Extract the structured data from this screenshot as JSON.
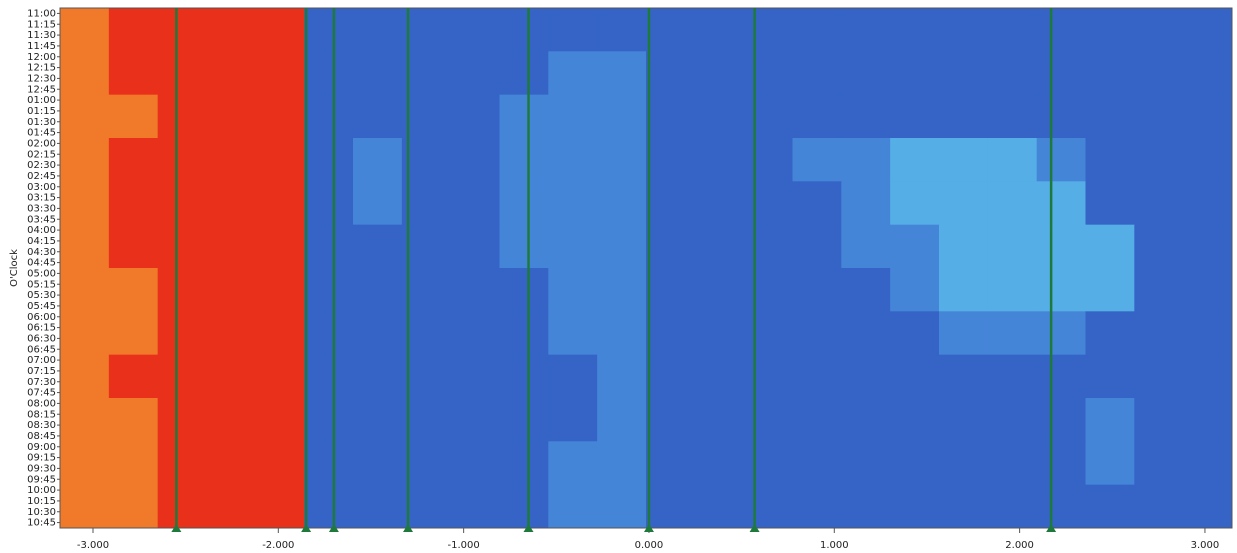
{
  "chart_data": {
    "type": "heatmap",
    "y_label": "O'Clock",
    "categories": [
      "11:00",
      "11:15",
      "11:30",
      "11:45",
      "12:00",
      "12:15",
      "12:30",
      "12:45",
      "01:00",
      "01:15",
      "01:30",
      "01:45",
      "02:00",
      "02:15",
      "02:30",
      "02:45",
      "03:00",
      "03:15",
      "03:30",
      "03:45",
      "04:00",
      "04:15",
      "04:30",
      "04:45",
      "05:00",
      "05:15",
      "05:30",
      "05:45",
      "06:00",
      "06:15",
      "06:30",
      "06:45",
      "07:00",
      "07:15",
      "07:30",
      "07:45",
      "08:00",
      "08:15",
      "08:30",
      "08:45",
      "09:00",
      "09:15",
      "09:30",
      "09:45",
      "10:00",
      "10:15",
      "10:30",
      "10:45"
    ],
    "xlim": [
      -3.178,
      3.146
    ],
    "xticks": [
      {
        "value": -3,
        "label": "-3.000"
      },
      {
        "value": -2,
        "label": "-2.000"
      },
      {
        "value": -1,
        "label": "-1.000"
      },
      {
        "value": 0,
        "label": "0.000"
      },
      {
        "value": 1,
        "label": "1.000"
      },
      {
        "value": 2,
        "label": "2.000"
      },
      {
        "value": 3,
        "label": "3.000"
      }
    ],
    "colorscale": [
      "#2b4fae",
      "#3564c6",
      "#4585d8",
      "#55aee6",
      "#e8301a",
      "#f07a2a"
    ],
    "markers": [
      -2.55,
      -1.85,
      -1.7,
      -1.3,
      -0.65,
      0,
      0.57,
      2.17
    ],
    "marker_color": "#1e7a3a",
    "z": [
      [
        5,
        4,
        4,
        4,
        4,
        1,
        1,
        1,
        1,
        1,
        1,
        1,
        1,
        1,
        1,
        1,
        1,
        1,
        1,
        1,
        1,
        1,
        1,
        1
      ],
      [
        5,
        4,
        4,
        4,
        4,
        1,
        1,
        1,
        1,
        1,
        2,
        2,
        1,
        1,
        1,
        1,
        1,
        1,
        1,
        1,
        1,
        1,
        1,
        1
      ],
      [
        5,
        5,
        4,
        4,
        4,
        1,
        1,
        1,
        1,
        2,
        2,
        2,
        1,
        1,
        1,
        1,
        1,
        1,
        1,
        1,
        1,
        1,
        1,
        1
      ],
      [
        5,
        4,
        4,
        4,
        4,
        1,
        2,
        1,
        1,
        2,
        2,
        2,
        1,
        1,
        1,
        2,
        2,
        3,
        3,
        3,
        2,
        1,
        1,
        1
      ],
      [
        5,
        4,
        4,
        4,
        4,
        1,
        2,
        1,
        1,
        2,
        2,
        2,
        1,
        1,
        1,
        1,
        2,
        3,
        3,
        3,
        3,
        1,
        1,
        1
      ],
      [
        5,
        4,
        4,
        4,
        4,
        1,
        1,
        1,
        1,
        2,
        2,
        2,
        1,
        1,
        1,
        1,
        2,
        2,
        3,
        3,
        3,
        3,
        1,
        1
      ],
      [
        5,
        5,
        4,
        4,
        4,
        1,
        1,
        1,
        1,
        1,
        2,
        2,
        1,
        1,
        1,
        1,
        1,
        2,
        3,
        3,
        3,
        3,
        1,
        1
      ],
      [
        5,
        5,
        4,
        4,
        4,
        1,
        1,
        1,
        1,
        1,
        2,
        2,
        1,
        1,
        1,
        1,
        1,
        1,
        2,
        2,
        2,
        1,
        1,
        1
      ],
      [
        5,
        4,
        4,
        4,
        4,
        1,
        1,
        1,
        1,
        1,
        1,
        2,
        1,
        1,
        1,
        1,
        1,
        1,
        1,
        1,
        1,
        1,
        1,
        1
      ],
      [
        5,
        5,
        4,
        4,
        4,
        1,
        1,
        1,
        1,
        1,
        1,
        2,
        1,
        1,
        1,
        1,
        1,
        1,
        1,
        1,
        1,
        2,
        1,
        1
      ],
      [
        5,
        5,
        4,
        4,
        4,
        1,
        1,
        1,
        1,
        1,
        2,
        2,
        1,
        1,
        1,
        1,
        1,
        1,
        1,
        1,
        1,
        2,
        1,
        1
      ],
      [
        5,
        5,
        4,
        4,
        4,
        1,
        1,
        1,
        1,
        1,
        2,
        2,
        1,
        1,
        1,
        1,
        1,
        1,
        1,
        1,
        1,
        1,
        1,
        1
      ]
    ]
  }
}
